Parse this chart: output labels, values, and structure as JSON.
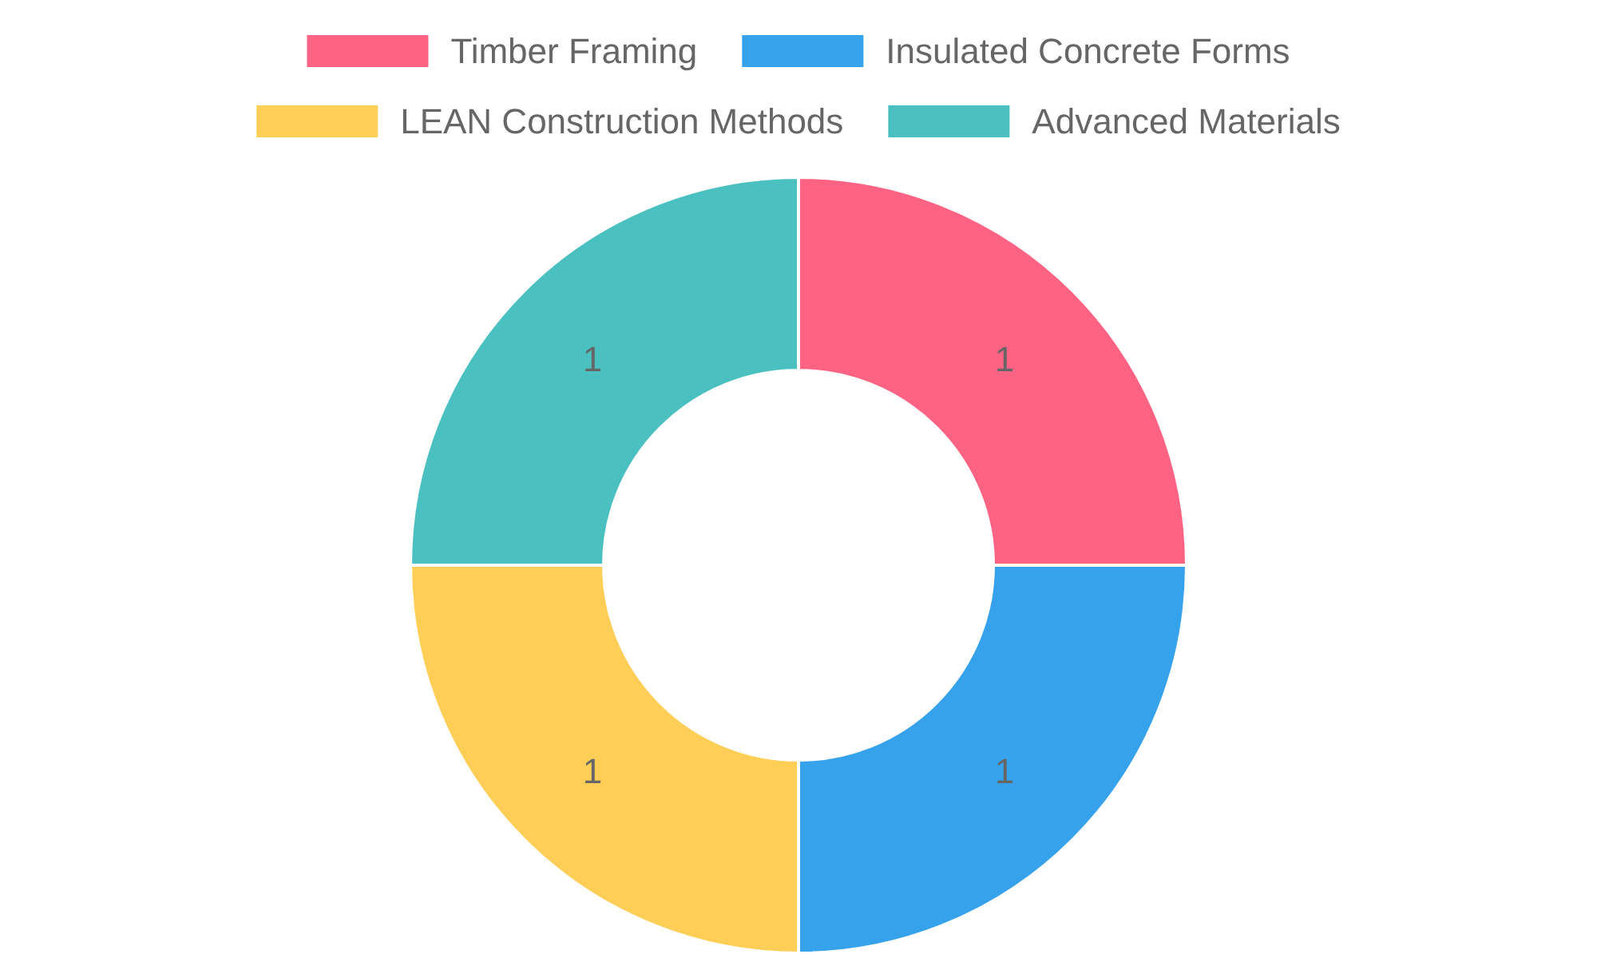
{
  "chart_data": {
    "type": "donut",
    "categories": [
      "Timber Framing",
      "Insulated Concrete Forms",
      "LEAN Construction Methods",
      "Advanced Materials"
    ],
    "values": [
      1,
      1,
      1,
      1
    ],
    "colors": [
      "#ff6384",
      "#36a2eb",
      "#ffce56",
      "#4bc0c0"
    ],
    "data_labels": true,
    "legend": "top"
  }
}
